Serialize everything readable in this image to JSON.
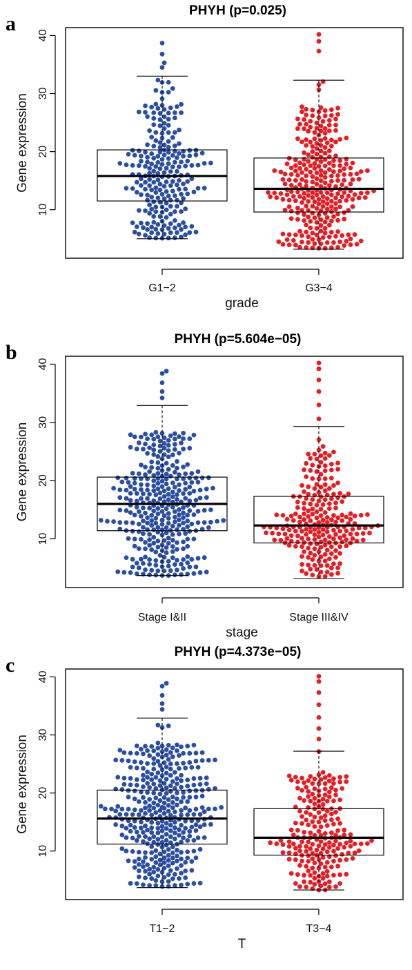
{
  "chart_data": [
    {
      "type": "box",
      "panel": "a",
      "title": "PHYH (p=0.025)",
      "xlabel": "grade",
      "ylabel": "Gene expression",
      "ylim": [
        2,
        41
      ],
      "yticks": [
        10,
        20,
        30,
        40
      ],
      "categories": [
        "G1−2",
        "G3−4"
      ],
      "colors": [
        "#2b4ea3",
        "#e31e24"
      ],
      "boxes": [
        {
          "whisker_low": 5,
          "q1": 11.5,
          "median": 15.8,
          "q3": 20.3,
          "whisker_high": 33,
          "n_points": 230
        },
        {
          "whisker_low": 3.2,
          "q1": 9.6,
          "median": 13.6,
          "q3": 18.9,
          "whisker_high": 32.3,
          "n_points": 300
        }
      ],
      "outliers": [
        [
          34.5,
          35.3,
          36.8,
          38.7
        ],
        [
          37.3,
          39,
          40.2
        ]
      ]
    },
    {
      "type": "box",
      "panel": "b",
      "title": "PHYH (p=5.604e−05)",
      "xlabel": "stage",
      "ylabel": "Gene expression",
      "ylim": [
        2,
        41
      ],
      "yticks": [
        10,
        20,
        30,
        40
      ],
      "categories": [
        "Stage I&II",
        "Stage III&IV"
      ],
      "colors": [
        "#2b4ea3",
        "#e31e24"
      ],
      "boxes": [
        {
          "whisker_low": 3.7,
          "q1": 11.4,
          "median": 16,
          "q3": 20.6,
          "whisker_high": 32.9,
          "n_points": 340
        },
        {
          "whisker_low": 3.2,
          "q1": 9.3,
          "median": 12.3,
          "q3": 17.3,
          "whisker_high": 29.3,
          "n_points": 230
        }
      ],
      "outliers": [
        [
          34.2,
          35.3,
          36.8,
          38.4,
          38.8
        ],
        [
          30.6,
          33,
          35.3,
          37.3,
          39.2,
          40.2
        ]
      ]
    },
    {
      "type": "box",
      "panel": "c",
      "title": "PHYH (p=4.373e−05)",
      "xlabel": "T",
      "ylabel": "Gene expression",
      "ylim": [
        2,
        41
      ],
      "yticks": [
        10,
        20,
        30,
        40
      ],
      "categories": [
        "T1−2",
        "T3−4"
      ],
      "colors": [
        "#2b4ea3",
        "#e31e24"
      ],
      "boxes": [
        {
          "whisker_low": 3.7,
          "q1": 11.2,
          "median": 15.6,
          "q3": 20.5,
          "whisker_high": 32.9,
          "n_points": 370
        },
        {
          "whisker_low": 3.3,
          "q1": 9.3,
          "median": 12.3,
          "q3": 17.3,
          "whisker_high": 27.2,
          "n_points": 210
        }
      ],
      "outliers": [
        [
          34.4,
          35.4,
          36.8,
          38.4,
          38.9
        ],
        [
          29.3,
          31.1,
          33,
          35.2,
          37.3,
          39.2,
          40.1
        ]
      ]
    }
  ]
}
